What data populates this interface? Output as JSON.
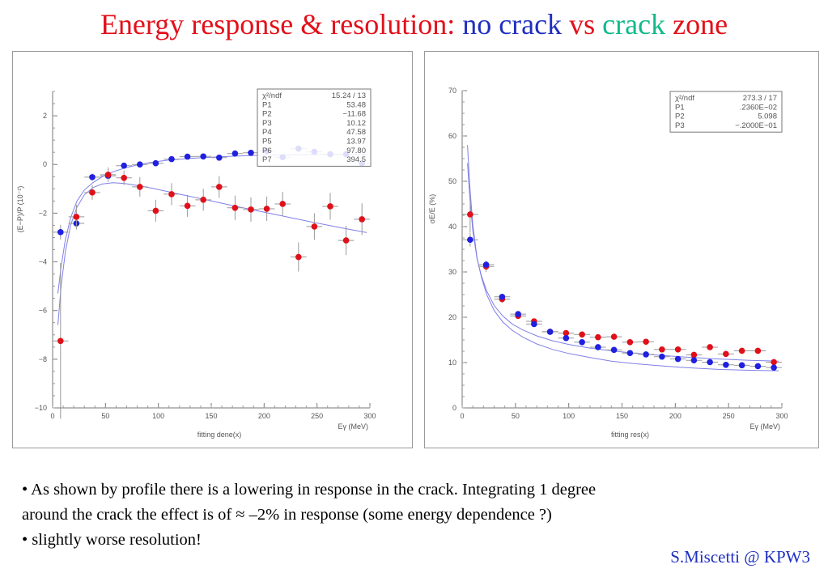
{
  "title": {
    "prefix": "Energy response & resolution:",
    "no_crack": "no crack",
    "vs": "vs",
    "crack": "crack",
    "zone": "zone",
    "colors": {
      "prefix": "#e3101a",
      "no_crack": "#1f2fc0",
      "vs": "#e3101a",
      "crack": "#11b98a",
      "zone": "#e3101a"
    }
  },
  "chart_data": [
    {
      "type": "scatter",
      "ylabel": "(E−P)/P (10⁻²)",
      "xlabel": "Eγ (MeV)",
      "caption": "fitting dene(x)",
      "xlim": [
        0,
        300
      ],
      "ylim": [
        -10,
        3
      ],
      "xticks": [
        0,
        50,
        100,
        150,
        200,
        250,
        300
      ],
      "yticks": [
        -10,
        -8,
        -6,
        -4,
        -2,
        0,
        2
      ],
      "stats_box": [
        {
          "k": "χ²/ndf",
          "v": "15.24   /   13"
        },
        {
          "k": "P1",
          "v": "53.48"
        },
        {
          "k": "P2",
          "v": "−11.68"
        },
        {
          "k": "P3",
          "v": "10.12"
        },
        {
          "k": "P4",
          "v": "47.58"
        },
        {
          "k": "P5",
          "v": "13.97"
        },
        {
          "k": "P6",
          "v": "97.80"
        },
        {
          "k": "P7",
          "v": "394.5"
        }
      ],
      "series": [
        {
          "color": "#2020e0",
          "x": [
            7.5,
            22.5,
            37.5,
            52.5,
            67.5,
            82.5,
            97.5,
            112.5,
            127.5,
            142.5,
            157.5,
            172.5,
            187.5,
            202.5,
            217.5,
            232.5,
            247.5,
            262.5,
            277.5,
            292.5
          ],
          "y": [
            -2.78,
            -2.42,
            -0.52,
            -0.47,
            -0.05,
            0.0,
            0.05,
            0.22,
            0.32,
            0.33,
            0.28,
            0.45,
            0.48,
            0.55,
            0.3,
            0.65,
            0.52,
            0.42,
            0.42,
            0.05
          ],
          "yerr": [
            0.3,
            0.25,
            0.15,
            0.12,
            0.1,
            0.1,
            0.1,
            0.08,
            0.08,
            0.08,
            0.08,
            0.08,
            0.08,
            0.08,
            0.08,
            0.08,
            0.08,
            0.08,
            0.08,
            0.1
          ]
        },
        {
          "color": "#e0101a",
          "x": [
            7.5,
            22.5,
            37.5,
            52.5,
            67.5,
            82.5,
            97.5,
            112.5,
            127.5,
            142.5,
            157.5,
            172.5,
            187.5,
            202.5,
            217.5,
            232.5,
            247.5,
            262.5,
            277.5,
            292.5
          ],
          "y": [
            -7.25,
            -2.15,
            -1.15,
            -0.42,
            -0.55,
            -0.92,
            -1.9,
            -1.22,
            -1.7,
            -1.45,
            -0.92,
            -1.78,
            -1.85,
            -1.82,
            -1.62,
            -3.8,
            -2.55,
            -1.72,
            -3.12,
            -2.25
          ],
          "yerr": [
            3.2,
            0.5,
            0.3,
            0.3,
            0.3,
            0.4,
            0.45,
            0.45,
            0.45,
            0.45,
            0.45,
            0.5,
            0.5,
            0.5,
            0.5,
            0.6,
            0.55,
            0.55,
            0.6,
            0.65
          ]
        }
      ],
      "fit_curves": [
        {
          "color": "#8080e8",
          "x": [
            5,
            8,
            12,
            17,
            23,
            30,
            38,
            47,
            57,
            68,
            80,
            95,
            110,
            130,
            150,
            175,
            200,
            225,
            250,
            275,
            297
          ],
          "y": [
            -5.3,
            -4.2,
            -3.1,
            -2.2,
            -1.5,
            -1.05,
            -0.75,
            -0.5,
            -0.3,
            -0.15,
            -0.02,
            0.1,
            0.18,
            0.25,
            0.3,
            0.35,
            0.38,
            0.4,
            0.41,
            0.42,
            0.42
          ]
        },
        {
          "color": "#8080e8",
          "x": [
            5,
            8,
            12,
            17,
            23,
            30,
            38,
            47,
            57,
            68,
            80,
            95,
            120,
            150,
            180,
            210,
            240,
            270,
            297
          ],
          "y": [
            -6.6,
            -5.0,
            -3.6,
            -2.5,
            -1.75,
            -1.25,
            -0.95,
            -0.8,
            -0.75,
            -0.78,
            -0.86,
            -0.98,
            -1.22,
            -1.5,
            -1.78,
            -2.05,
            -2.32,
            -2.58,
            -2.8
          ]
        }
      ]
    },
    {
      "type": "scatter",
      "ylabel": "σE/E (%)",
      "xlabel": "Eγ (MeV)",
      "caption": "fitting res(x)",
      "xlim": [
        0,
        300
      ],
      "ylim": [
        0,
        70
      ],
      "xticks": [
        0,
        50,
        100,
        150,
        200,
        250,
        300
      ],
      "yticks": [
        0,
        10,
        20,
        30,
        40,
        50,
        60,
        70
      ],
      "stats_box": [
        {
          "k": "χ²/ndf",
          "v": "273.3   /   17"
        },
        {
          "k": "P1",
          "v": ".2360E−02"
        },
        {
          "k": "P2",
          "v": "5.098"
        },
        {
          "k": "P3",
          "v": "−.2000E−01"
        }
      ],
      "series": [
        {
          "color": "#e0101a",
          "x": [
            7.5,
            22.5,
            37.5,
            52.5,
            67.5,
            82.5,
            97.5,
            112.5,
            127.5,
            142.5,
            157.5,
            172.5,
            187.5,
            202.5,
            217.5,
            232.5,
            247.5,
            262.5,
            277.5,
            292.5
          ],
          "y": [
            42.7,
            31.2,
            24.0,
            20.3,
            19.1,
            16.8,
            16.5,
            16.2,
            15.6,
            15.7,
            14.5,
            14.6,
            12.9,
            12.9,
            11.7,
            13.4,
            11.9,
            12.6,
            12.6,
            10.1
          ],
          "yerr": [
            4.0,
            1.2,
            0.8,
            0.6,
            0.6,
            0.5,
            0.5,
            0.5,
            0.5,
            0.5,
            0.5,
            0.5,
            0.5,
            0.5,
            0.5,
            0.5,
            0.5,
            0.5,
            0.5,
            0.5
          ]
        },
        {
          "color": "#2020e0",
          "x": [
            7.5,
            22.5,
            37.5,
            52.5,
            67.5,
            82.5,
            97.5,
            112.5,
            127.5,
            142.5,
            157.5,
            172.5,
            187.5,
            202.5,
            217.5,
            232.5,
            247.5,
            262.5,
            277.5,
            292.5
          ],
          "y": [
            37.1,
            31.6,
            24.5,
            20.7,
            18.5,
            16.8,
            15.4,
            14.5,
            13.4,
            12.8,
            12.1,
            11.8,
            11.3,
            10.8,
            10.5,
            10.1,
            9.5,
            9.4,
            9.2,
            8.9
          ],
          "yerr": [
            1.5,
            0.8,
            0.5,
            0.4,
            0.3,
            0.3,
            0.3,
            0.3,
            0.3,
            0.3,
            0.3,
            0.3,
            0.3,
            0.3,
            0.3,
            0.3,
            0.3,
            0.3,
            0.3,
            0.3
          ]
        }
      ],
      "fit_curves": [
        {
          "color": "#8080e8",
          "x": [
            5,
            7,
            10,
            14,
            18,
            23,
            30,
            38,
            47,
            57,
            70,
            85,
            100,
            120,
            140,
            160,
            185,
            210,
            240,
            270,
            297
          ],
          "y": [
            58.0,
            49.5,
            40.3,
            33.1,
            28.9,
            25.0,
            21.5,
            19.0,
            17.1,
            15.6,
            14.1,
            12.9,
            12.0,
            11.1,
            10.3,
            9.8,
            9.3,
            8.9,
            8.5,
            8.3,
            8.2
          ]
        },
        {
          "color": "#8080e8",
          "x": [
            5,
            7,
            10,
            14,
            18,
            23,
            30,
            38,
            47,
            57,
            70,
            85,
            100,
            120,
            140,
            160,
            185,
            210,
            240,
            270,
            297
          ],
          "y": [
            54.0,
            47.0,
            39.0,
            32.9,
            29.2,
            25.8,
            22.6,
            20.3,
            18.5,
            17.2,
            15.9,
            14.8,
            14.0,
            13.2,
            12.6,
            12.1,
            11.6,
            11.2,
            10.8,
            10.5,
            10.3
          ]
        }
      ]
    }
  ],
  "bullets": [
    "• As shown by profile there is a lowering in response in the crack. Integrating 1 degree",
    " around the crack the effect is of  ≈ –2% in response (some energy dependence ?)",
    "• slightly worse resolution!"
  ],
  "footer": "S.Miscetti @ KPW3"
}
